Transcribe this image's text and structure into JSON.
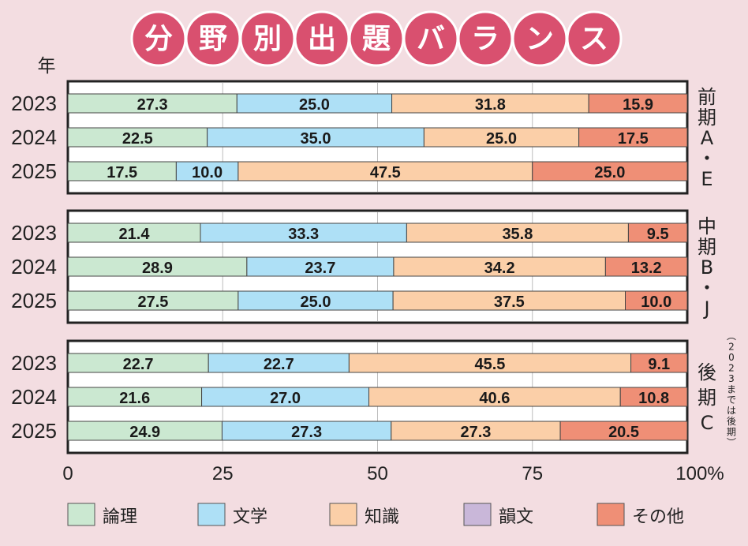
{
  "title_chars": [
    "分",
    "野",
    "別",
    "出",
    "題",
    "バ",
    "ラ",
    "ン",
    "ス"
  ],
  "y_unit_label": "年",
  "colors": {
    "論理": "#cbe8d1",
    "文学": "#aee0f6",
    "知識": "#fbcfa8",
    "韻文": "#c9b7d9",
    "その他": "#ef8f76",
    "page_bg": "#f3dde1",
    "title_circle": "#d9506f"
  },
  "chart_data": {
    "type": "bar",
    "orientation": "horizontal-stacked",
    "xlim": [
      0,
      100
    ],
    "x_ticks": [
      "0",
      "25",
      "50",
      "75",
      "100%"
    ],
    "grid": true,
    "legend": [
      "論理",
      "文学",
      "知識",
      "韻文",
      "その他"
    ],
    "legend_position": "bottom",
    "groups": [
      {
        "label_chars": [
          "前",
          "期",
          "A",
          "・",
          "E"
        ],
        "note_chars": [],
        "rows": [
          {
            "year": "2023",
            "segments": [
              {
                "category": "論理",
                "value": 27.3,
                "label": "27.3"
              },
              {
                "category": "文学",
                "value": 25.0,
                "label": "25.0"
              },
              {
                "category": "知識",
                "value": 31.8,
                "label": "31.8"
              },
              {
                "category": "その他",
                "value": 15.9,
                "label": "15.9"
              }
            ]
          },
          {
            "year": "2024",
            "segments": [
              {
                "category": "論理",
                "value": 22.5,
                "label": "22.5"
              },
              {
                "category": "文学",
                "value": 35.0,
                "label": "35.0"
              },
              {
                "category": "知識",
                "value": 25.0,
                "label": "25.0"
              },
              {
                "category": "その他",
                "value": 17.5,
                "label": "17.5"
              }
            ]
          },
          {
            "year": "2025",
            "segments": [
              {
                "category": "論理",
                "value": 17.5,
                "label": "17.5"
              },
              {
                "category": "文学",
                "value": 10.0,
                "label": "10.0"
              },
              {
                "category": "知識",
                "value": 47.5,
                "label": "47.5"
              },
              {
                "category": "その他",
                "value": 25.0,
                "label": "25.0"
              }
            ]
          }
        ]
      },
      {
        "label_chars": [
          "中",
          "期",
          "B",
          "・",
          "J"
        ],
        "note_chars": [],
        "rows": [
          {
            "year": "2023",
            "segments": [
              {
                "category": "論理",
                "value": 21.4,
                "label": "21.4"
              },
              {
                "category": "文学",
                "value": 33.3,
                "label": "33.3"
              },
              {
                "category": "知識",
                "value": 35.8,
                "label": "35.8"
              },
              {
                "category": "その他",
                "value": 9.5,
                "label": "9.5"
              }
            ]
          },
          {
            "year": "2024",
            "segments": [
              {
                "category": "論理",
                "value": 28.9,
                "label": "28.9"
              },
              {
                "category": "文学",
                "value": 23.7,
                "label": "23.7"
              },
              {
                "category": "知識",
                "value": 34.2,
                "label": "34.2"
              },
              {
                "category": "その他",
                "value": 13.2,
                "label": "13.2"
              }
            ]
          },
          {
            "year": "2025",
            "segments": [
              {
                "category": "論理",
                "value": 27.5,
                "label": "27.5"
              },
              {
                "category": "文学",
                "value": 25.0,
                "label": "25.0"
              },
              {
                "category": "知識",
                "value": 37.5,
                "label": "37.5"
              },
              {
                "category": "その他",
                "value": 10.0,
                "label": "10.0"
              }
            ]
          }
        ]
      },
      {
        "label_chars": [
          "後",
          "期",
          "C"
        ],
        "note_chars": [
          "︵",
          "2",
          "0",
          "2",
          "3",
          "ま",
          "で",
          "は",
          "後",
          "期",
          "︶"
        ],
        "rows": [
          {
            "year": "2023",
            "segments": [
              {
                "category": "論理",
                "value": 22.7,
                "label": "22.7"
              },
              {
                "category": "文学",
                "value": 22.7,
                "label": "22.7"
              },
              {
                "category": "知識",
                "value": 45.5,
                "label": "45.5"
              },
              {
                "category": "その他",
                "value": 9.1,
                "label": "9.1"
              }
            ]
          },
          {
            "year": "2024",
            "segments": [
              {
                "category": "論理",
                "value": 21.6,
                "label": "21.6"
              },
              {
                "category": "文学",
                "value": 27.0,
                "label": "27.0"
              },
              {
                "category": "知識",
                "value": 40.6,
                "label": "40.6"
              },
              {
                "category": "その他",
                "value": 10.8,
                "label": "10.8"
              }
            ]
          },
          {
            "year": "2025",
            "segments": [
              {
                "category": "論理",
                "value": 24.9,
                "label": "24.9"
              },
              {
                "category": "文学",
                "value": 27.3,
                "label": "27.3"
              },
              {
                "category": "知識",
                "value": 27.3,
                "label": "27.3"
              },
              {
                "category": "その他",
                "value": 20.5,
                "label": "20.5"
              }
            ]
          }
        ]
      }
    ]
  }
}
